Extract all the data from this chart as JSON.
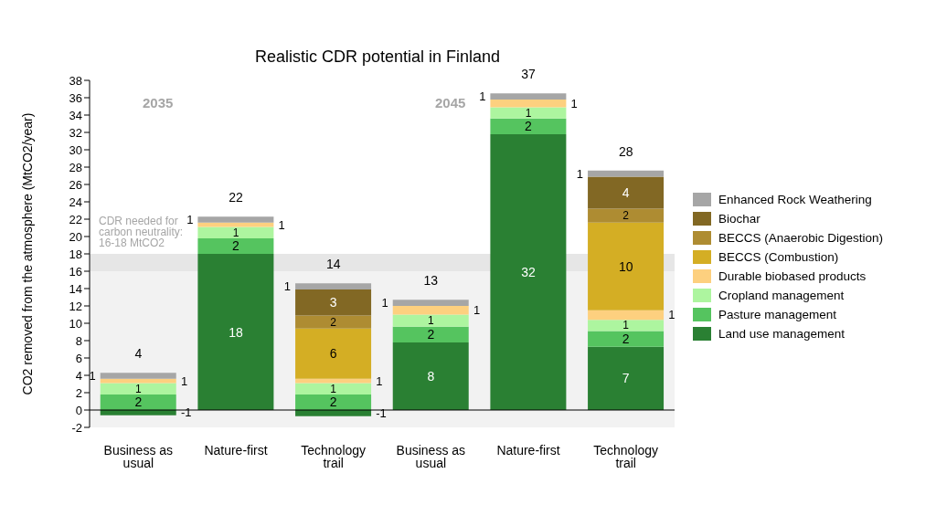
{
  "chart_data": {
    "type": "bar",
    "stacked": true,
    "title": "Realistic CDR potential in Finland",
    "ylabel": "CO2 removed from the atmosphere (MtCO2/year)",
    "categories": [
      "Business as usual",
      "Nature-first",
      "Technology trail",
      "Business as usual",
      "Nature-first",
      "Technology trail"
    ],
    "series": [
      {
        "name": "Land use management",
        "color": "#2a8033",
        "values": [
          -0.6,
          18.0,
          -0.7,
          7.8,
          31.8,
          7.3
        ],
        "value_labels": [
          "-1",
          "18",
          "-1",
          "8",
          "32",
          "7"
        ]
      },
      {
        "name": "Pasture management",
        "color": "#55c45f",
        "values": [
          1.8,
          1.8,
          1.8,
          1.8,
          1.8,
          1.8
        ],
        "value_labels": [
          "2",
          "2",
          "2",
          "2",
          "2",
          "2"
        ]
      },
      {
        "name": "Cropland management",
        "color": "#adf59f",
        "values": [
          1.3,
          1.3,
          1.3,
          1.4,
          1.3,
          1.3
        ],
        "value_labels": [
          "1",
          "1",
          "1",
          "1",
          "1",
          "1"
        ]
      },
      {
        "name": "Durable biobased products",
        "color": "#fdd07f",
        "values": [
          0.5,
          0.5,
          0.5,
          1.0,
          0.9,
          1.1
        ],
        "value_labels": [
          "1",
          "1",
          "1",
          "1",
          "1",
          "1"
        ]
      },
      {
        "name": "BECCS (Combustion)",
        "color": "#d4ae24",
        "values": [
          null,
          null,
          5.8,
          null,
          null,
          10.1
        ],
        "value_labels": [
          null,
          null,
          "6",
          null,
          null,
          "10"
        ]
      },
      {
        "name": "BECCS (Anaerobic Digestion)",
        "color": "#ae8c32",
        "values": [
          null,
          null,
          1.5,
          null,
          null,
          1.6
        ],
        "value_labels": [
          null,
          null,
          "2",
          null,
          null,
          "2"
        ]
      },
      {
        "name": "Biochar",
        "color": "#826824",
        "values": [
          null,
          null,
          3.0,
          null,
          null,
          3.7
        ],
        "value_labels": [
          null,
          null,
          "3",
          null,
          null,
          "4"
        ]
      },
      {
        "name": "Enhanced Rock Weathering",
        "color": "#a6a6a6",
        "values": [
          0.7,
          0.7,
          0.7,
          0.7,
          0.7,
          0.7
        ],
        "value_labels": [
          "1",
          "1",
          "1",
          "1",
          "1",
          "1"
        ]
      }
    ],
    "totals": [
      "4",
      "22",
      "14",
      "13",
      "37",
      "28"
    ],
    "ylim": [
      -2,
      38
    ],
    "yticks": [
      -2,
      0,
      2,
      4,
      6,
      8,
      10,
      12,
      14,
      16,
      18,
      20,
      22,
      24,
      26,
      28,
      30,
      32,
      34,
      36,
      38
    ],
    "bands": [
      {
        "axis": "y",
        "from": -2,
        "to": 16,
        "color": "#f2f2f2"
      },
      {
        "axis": "y",
        "from": 16,
        "to": 18,
        "color": "#e6e6e6",
        "label": "CDR needed for carbon neutrality: 16-18 MtCO2"
      }
    ],
    "annotations": [
      "2035",
      "2045"
    ],
    "grid": false,
    "legend": "right"
  }
}
